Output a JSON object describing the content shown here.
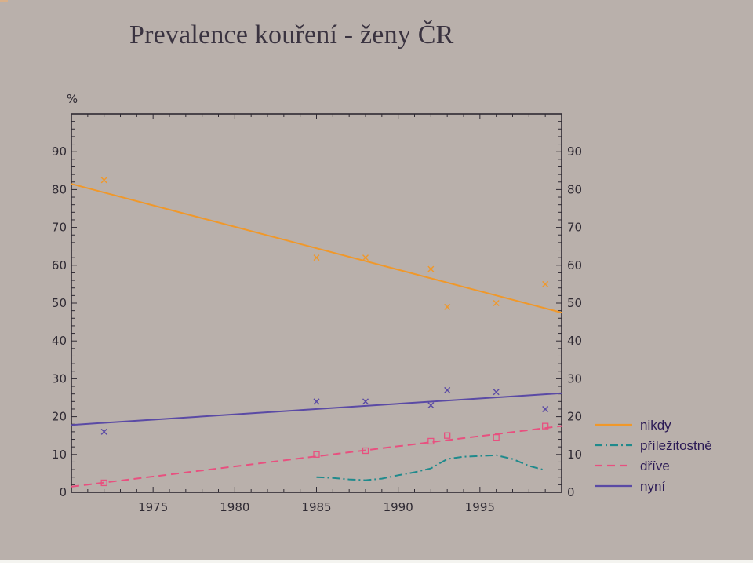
{
  "slide": {
    "title": "Prevalence kouření - ženy ČR"
  },
  "chart_data": {
    "type": "line",
    "title": "Prevalence kouření - ženy ČR",
    "ylabel": "%",
    "xlabel": "",
    "xlim": [
      1970,
      2000
    ],
    "ylim": [
      0,
      100
    ],
    "x_ticks": [
      1975,
      1980,
      1985,
      1990,
      1995
    ],
    "y_ticks": [
      0,
      10,
      20,
      30,
      40,
      50,
      60,
      70,
      80,
      90
    ],
    "grid": false,
    "legend_position": "right",
    "series": [
      {
        "name": "nikdy",
        "color": "#f0982a",
        "dash": "solid",
        "marker": "x",
        "fit_line": [
          [
            1970,
            81.5
          ],
          [
            2000,
            47.5
          ]
        ],
        "points": [
          [
            1972,
            82.5
          ],
          [
            1985,
            62
          ],
          [
            1988,
            62
          ],
          [
            1992,
            59
          ],
          [
            1993,
            49
          ],
          [
            1996,
            50
          ],
          [
            1999,
            55
          ]
        ]
      },
      {
        "name": "příležitostně",
        "color": "#1f8a8c",
        "dash": "dashdot",
        "marker": "",
        "curve": [
          [
            1985,
            4
          ],
          [
            1986,
            3.8
          ],
          [
            1987,
            3.4
          ],
          [
            1988,
            3.2
          ],
          [
            1989,
            3.6
          ],
          [
            1990,
            4.5
          ],
          [
            1991,
            5.3
          ],
          [
            1992,
            6.3
          ],
          [
            1993,
            8.8
          ],
          [
            1994,
            9.4
          ],
          [
            1995,
            9.6
          ],
          [
            1996,
            9.8
          ],
          [
            1997,
            8.8
          ],
          [
            1998,
            7
          ],
          [
            1999,
            5.8
          ]
        ],
        "points": []
      },
      {
        "name": "dříve",
        "color": "#e8507f",
        "dash": "dashed",
        "marker": "square",
        "fit_line": [
          [
            1970,
            1.5
          ],
          [
            2000,
            17.5
          ]
        ],
        "points": [
          [
            1972,
            2.5
          ],
          [
            1985,
            10
          ],
          [
            1988,
            11
          ],
          [
            1992,
            13.5
          ],
          [
            1993,
            15
          ],
          [
            1996,
            14.5
          ],
          [
            1999,
            17.5
          ]
        ]
      },
      {
        "name": "nyní",
        "color": "#5a4aa5",
        "dash": "solid",
        "marker": "x",
        "fit_line": [
          [
            1970,
            17.8
          ],
          [
            2000,
            26.2
          ]
        ],
        "points": [
          [
            1972,
            16
          ],
          [
            1985,
            24
          ],
          [
            1988,
            24
          ],
          [
            1992,
            23
          ],
          [
            1993,
            27
          ],
          [
            1996,
            26.5
          ],
          [
            1999,
            22
          ]
        ]
      }
    ]
  }
}
